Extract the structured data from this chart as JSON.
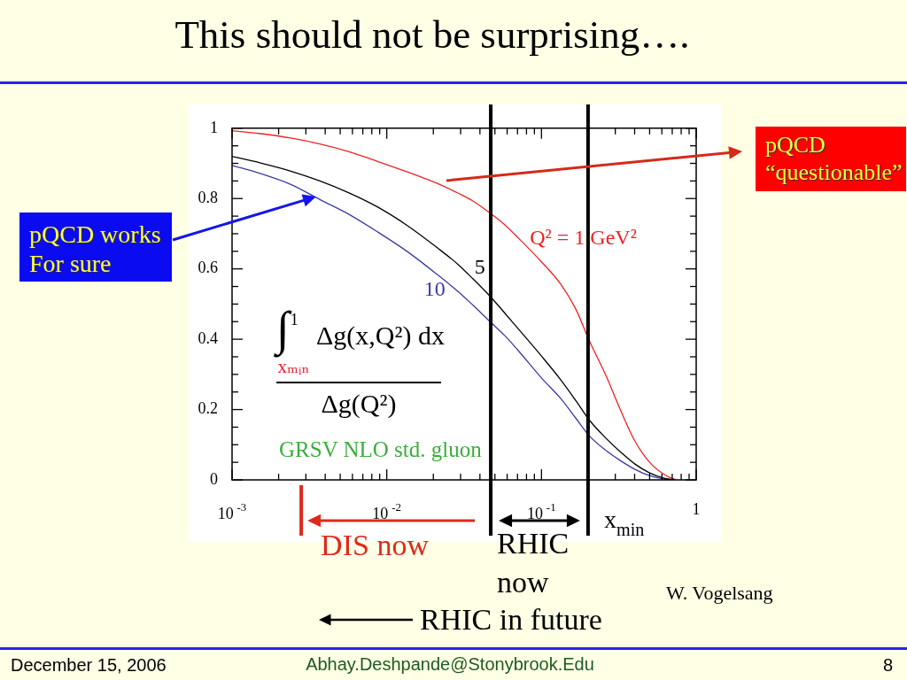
{
  "chart_data": {
    "type": "line",
    "title": "This should not be surprising….",
    "xlabel": "x$_{min}$",
    "ylabel": "∫$^{1}$$_{xₘᵢₙ}$ Δg(x,Q²) dx\nΔg(Q²)",
    "x": [
      0.001,
      0.0015,
      0.0024,
      0.0037,
      0.0057,
      0.0088,
      0.0137,
      0.0212,
      0.029,
      0.036,
      0.047,
      0.058,
      0.07,
      0.1,
      0.134,
      0.167,
      0.204,
      0.259,
      0.323,
      0.402,
      0.5,
      0.622,
      0.74
    ],
    "series": [
      {
        "name": "Q² = 1 GeV²",
        "color": "#ee2222",
        "values": [
          0.993,
          0.985,
          0.972,
          0.955,
          0.933,
          0.905,
          0.875,
          0.843,
          0.815,
          0.793,
          0.757,
          0.725,
          0.69,
          0.62,
          0.555,
          0.485,
          0.395,
          0.3,
          0.2,
          0.11,
          0.05,
          0.015,
          0
        ]
      },
      {
        "name": "5",
        "color": "#000000",
        "values": [
          0.92,
          0.902,
          0.878,
          0.85,
          0.816,
          0.775,
          0.722,
          0.66,
          0.612,
          0.572,
          0.52,
          0.474,
          0.432,
          0.352,
          0.283,
          0.225,
          0.17,
          0.12,
          0.08,
          0.045,
          0.02,
          0.005,
          0
        ]
      },
      {
        "name": "10",
        "color": "#3a3aa8",
        "values": [
          0.894,
          0.872,
          0.84,
          0.797,
          0.755,
          0.704,
          0.648,
          0.584,
          0.535,
          0.497,
          0.448,
          0.41,
          0.37,
          0.29,
          0.23,
          0.175,
          0.125,
          0.085,
          0.055,
          0.03,
          0.012,
          0.002,
          0
        ]
      }
    ],
    "log": "x",
    "xlim": [
      0.001,
      1
    ],
    "xticks": [
      {
        "value": 0.001,
        "label": "10$^{-3}$"
      },
      {
        "value": 0.002,
        "label": null
      },
      {
        "value": 0.003,
        "label": null
      },
      {
        "value": 0.004,
        "label": null
      },
      {
        "value": 0.005,
        "label": null
      },
      {
        "value": 0.006,
        "label": null
      },
      {
        "value": 0.007,
        "label": null
      },
      {
        "value": 0.008,
        "label": null
      },
      {
        "value": 0.009,
        "label": null
      },
      {
        "value": 0.01,
        "label": "10$^{-2}$"
      },
      {
        "value": 0.02,
        "label": null
      },
      {
        "value": 0.03,
        "label": null
      },
      {
        "value": 0.04,
        "label": null
      },
      {
        "value": 0.05,
        "label": null
      },
      {
        "value": 0.06,
        "label": null
      },
      {
        "value": 0.07,
        "label": null
      },
      {
        "value": 0.08,
        "label": null
      },
      {
        "value": 0.09,
        "label": null
      },
      {
        "value": 0.1,
        "label": "10$^{-1}$"
      },
      {
        "value": 0.2,
        "label": null
      },
      {
        "value": 0.3,
        "label": null
      },
      {
        "value": 0.4,
        "label": null
      },
      {
        "value": 0.5,
        "label": null
      },
      {
        "value": 0.6,
        "label": null
      },
      {
        "value": 0.7,
        "label": null
      },
      {
        "value": 0.8,
        "label": null
      },
      {
        "value": 0.9,
        "label": null
      },
      1
    ],
    "ylim": [
      0,
      1
    ],
    "yticks": [
      0,
      {
        "value": 0.05,
        "label": null
      },
      {
        "value": 0.1,
        "label": null
      },
      {
        "value": 0.15,
        "label": null
      },
      0.2,
      {
        "value": 0.25,
        "label": null
      },
      {
        "value": 0.3,
        "label": null
      },
      {
        "value": 0.35,
        "label": null
      },
      0.4,
      {
        "value": 0.45,
        "label": null
      },
      {
        "value": 0.5,
        "label": null
      },
      {
        "value": 0.55,
        "label": null
      },
      0.6,
      {
        "value": 0.65,
        "label": null
      },
      {
        "value": 0.7,
        "label": null
      },
      {
        "value": 0.75,
        "label": null
      },
      0.8,
      {
        "value": 0.85,
        "label": null
      },
      {
        "value": 0.9,
        "label": null
      },
      {
        "value": 0.95,
        "label": null
      },
      1
    ],
    "marker": "none",
    "ref_lines": [
      {
        "axis": "x",
        "value": 0.0028,
        "label": "DIS now",
        "color": "#dd2a1b"
      },
      {
        "axis": "x",
        "value": 0.047,
        "label": "RHIC now",
        "color": "#000000"
      },
      {
        "axis": "x",
        "value": 0.2,
        "color": "#000000"
      }
    ],
    "annotations": [
      "GRSV NLO std. gluon",
      "pQCD works\nFor sure",
      "pQCD\n“questionable”",
      "W. Vogelsang",
      "RHIC in future",
      "December 15, 2006",
      "Abhay.Deshpande@Stonybrook.Edu",
      "8"
    ]
  }
}
